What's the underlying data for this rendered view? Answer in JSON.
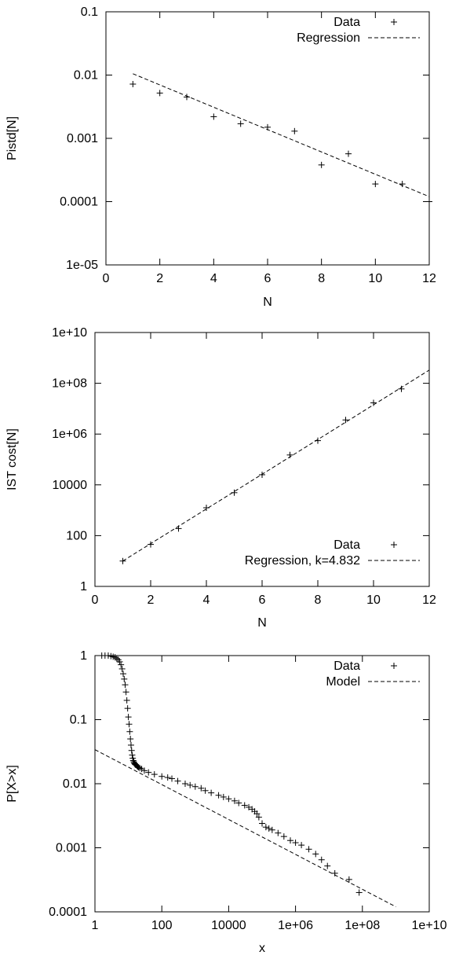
{
  "chart_data": [
    {
      "type": "scatter",
      "xlabel": "N",
      "ylabel": "Pistd[N]",
      "xscale": "linear",
      "yscale": "log",
      "xlim": [
        0,
        12
      ],
      "ylim": [
        1e-05,
        0.1
      ],
      "xticks": [
        0,
        2,
        4,
        6,
        8,
        10,
        12
      ],
      "xtick_labels": [
        "0",
        "2",
        "4",
        "6",
        "8",
        "10",
        "12"
      ],
      "yticks": [
        1e-05,
        0.0001,
        0.001,
        0.01,
        0.1
      ],
      "ytick_labels": [
        "1e-05",
        "0.0001",
        "0.001",
        "0.01",
        "0.1"
      ],
      "legend_position": "top-right",
      "series": [
        {
          "name": "Data",
          "style": "points",
          "x": [
            1,
            2,
            3,
            4,
            5,
            6,
            7,
            8,
            9,
            10,
            11,
            12
          ],
          "y": [
            0.0072,
            0.0052,
            0.0045,
            0.0022,
            0.0017,
            0.0015,
            0.0013,
            0.00038,
            0.00057,
            0.00019,
            0.00019,
            0.0001
          ]
        },
        {
          "name": "Regression",
          "style": "dashed-line",
          "x": [
            1,
            12
          ],
          "y": [
            0.0105,
            0.00012
          ]
        }
      ]
    },
    {
      "type": "scatter",
      "xlabel": "N",
      "ylabel": "IST cost[N]",
      "xscale": "linear",
      "yscale": "log",
      "xlim": [
        0,
        12
      ],
      "ylim": [
        1,
        10000000000
      ],
      "xticks": [
        0,
        2,
        4,
        6,
        8,
        10,
        12
      ],
      "xtick_labels": [
        "0",
        "2",
        "4",
        "6",
        "8",
        "10",
        "12"
      ],
      "yticks": [
        1,
        100,
        10000,
        1000000,
        100000000,
        10000000000
      ],
      "ytick_labels": [
        "1",
        "100",
        "10000",
        "1e+06",
        "1e+08",
        "1e+10"
      ],
      "legend_position": "bottom-right",
      "series": [
        {
          "name": "Data",
          "style": "points",
          "x": [
            1,
            2,
            3,
            4,
            5,
            6,
            7,
            8,
            9,
            10,
            11
          ],
          "y": [
            10,
            45,
            190,
            1250,
            4900,
            25000,
            150000,
            550000,
            3600000,
            17000000,
            60000000
          ]
        },
        {
          "name": "Regression, k=4.832",
          "style": "dashed-line",
          "x": [
            1,
            12
          ],
          "y": [
            10,
            330000000
          ]
        }
      ]
    },
    {
      "type": "scatter",
      "xlabel": "x",
      "ylabel": "P[X>x]",
      "xscale": "log",
      "yscale": "log",
      "xlim": [
        1,
        10000000000
      ],
      "ylim": [
        0.0001,
        1
      ],
      "xticks": [
        1,
        100,
        10000,
        1000000,
        100000000,
        10000000000
      ],
      "xtick_labels": [
        "1",
        "100",
        "10000",
        "1e+06",
        "1e+08",
        "1e+10"
      ],
      "yticks": [
        0.0001,
        0.001,
        0.01,
        0.1,
        1
      ],
      "ytick_labels": [
        "0.0001",
        "0.001",
        "0.01",
        "0.1",
        "1"
      ],
      "legend_position": "top-right",
      "series": [
        {
          "name": "Data",
          "style": "points",
          "x": [
            1.6,
            2,
            2.5,
            3,
            3.5,
            4,
            4.5,
            5,
            5.5,
            6,
            6.5,
            7,
            7.5,
            8,
            8.5,
            9,
            9.5,
            10,
            10.5,
            11,
            11.5,
            12,
            12.5,
            13,
            13.5,
            14,
            14.5,
            15,
            15.5,
            16,
            16.5,
            17,
            18,
            19,
            20,
            22,
            25,
            30,
            40,
            60,
            100,
            150,
            200,
            300,
            500,
            700,
            1000,
            1500,
            2000,
            3000,
            5000,
            7000,
            10000,
            15000,
            20000,
            30000,
            40000,
            50000,
            60000,
            70000,
            80000,
            100000,
            130000,
            160000,
            200000,
            300000,
            450000,
            700000,
            1000000,
            1500000,
            2500000,
            4000000,
            6000000,
            9000000,
            15000000,
            40000000,
            80000000
          ],
          "y": [
            1,
            1,
            1,
            0.98,
            0.96,
            0.94,
            0.9,
            0.86,
            0.8,
            0.72,
            0.62,
            0.52,
            0.43,
            0.35,
            0.27,
            0.2,
            0.15,
            0.11,
            0.085,
            0.065,
            0.05,
            0.04,
            0.033,
            0.028,
            0.025,
            0.023,
            0.022,
            0.021,
            0.0205,
            0.02,
            0.0198,
            0.0196,
            0.019,
            0.0185,
            0.018,
            0.0175,
            0.017,
            0.016,
            0.015,
            0.014,
            0.013,
            0.0125,
            0.012,
            0.011,
            0.01,
            0.0095,
            0.009,
            0.0085,
            0.0078,
            0.0072,
            0.0066,
            0.0062,
            0.0058,
            0.0054,
            0.005,
            0.0046,
            0.0043,
            0.004,
            0.0037,
            0.0034,
            0.003,
            0.0024,
            0.0021,
            0.002,
            0.0019,
            0.0017,
            0.0015,
            0.0013,
            0.0012,
            0.0011,
            0.00095,
            0.0008,
            0.00065,
            0.00052,
            0.0004,
            0.00032,
            0.0002
          ]
        },
        {
          "name": "Model",
          "style": "dashed-line",
          "x": [
            1,
            1000000000
          ],
          "y": [
            0.034,
            0.00012
          ]
        }
      ]
    }
  ]
}
